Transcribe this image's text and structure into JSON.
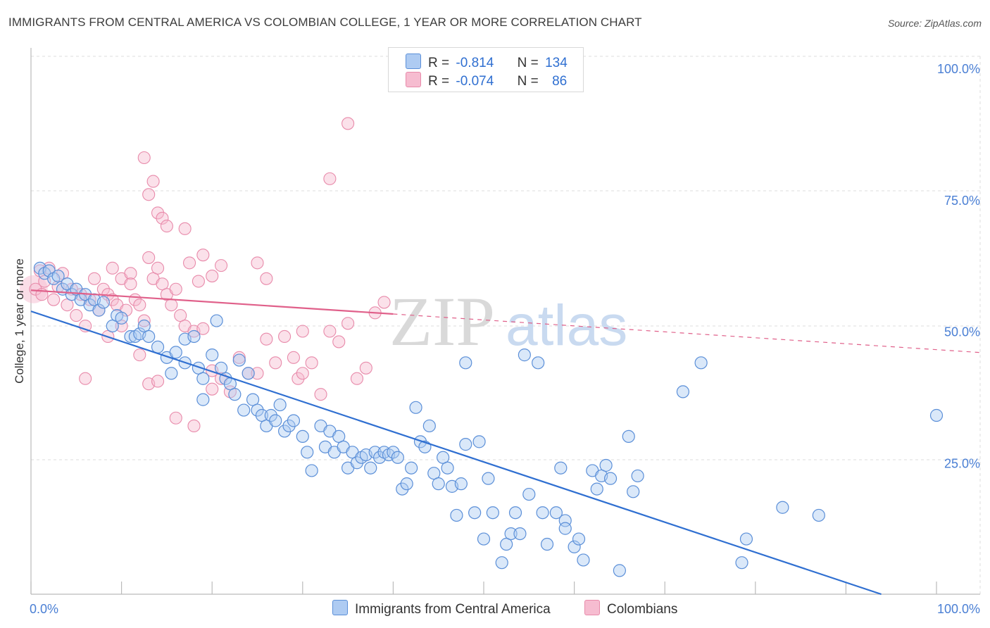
{
  "title": "IMMIGRANTS FROM CENTRAL AMERICA VS COLOMBIAN COLLEGE, 1 YEAR OR MORE CORRELATION CHART",
  "source": "Source: ZipAtlas.com",
  "watermark": {
    "zip": "ZIP",
    "atlas": "atlas"
  },
  "legend": {
    "rows": [
      {
        "r_label": "R =",
        "r_value": "-0.814",
        "n_label": "N =",
        "n_value": "134"
      },
      {
        "r_label": "R =",
        "r_value": "-0.074",
        "n_label": "N =",
        "n_value": "86"
      }
    ]
  },
  "bottom_legend": [
    "Immigrants from Central America",
    "Colombians"
  ],
  "colors": {
    "blue_fill": "#aecbf2",
    "blue_stroke": "#5b8fd8",
    "blue_line": "#2f6fd1",
    "pink_fill": "#f6bcd0",
    "pink_stroke": "#e88aaa",
    "pink_line": "#e0608a",
    "tick_label": "#4a7fd4",
    "grid": "#dddddd"
  },
  "chart_data": {
    "type": "scatter",
    "title": "IMMIGRANTS FROM CENTRAL AMERICA VS COLOMBIAN COLLEGE, 1 YEAR OR MORE CORRELATION CHART",
    "xlabel": "",
    "ylabel": "College, 1 year or more",
    "xlim": [
      0,
      100
    ],
    "ylim": [
      0,
      100
    ],
    "x_tick_labels": [
      "0.0%",
      "100.0%"
    ],
    "y_ticks": [
      25,
      50,
      75,
      100
    ],
    "y_tick_labels": [
      "25.0%",
      "50.0%",
      "75.0%",
      "100.0%"
    ],
    "grid": true,
    "legend_position": "top-center",
    "series": [
      {
        "name": "Immigrants from Central America",
        "r": -0.814,
        "n": 134,
        "trend": {
          "x0": 0,
          "y0": 53.8,
          "x1": 93.9,
          "y1": 0
        },
        "points": [
          [
            1,
            62
          ],
          [
            1.5,
            61
          ],
          [
            2,
            61.5
          ],
          [
            2.5,
            60
          ],
          [
            3,
            60.5
          ],
          [
            3.5,
            58
          ],
          [
            4,
            59
          ],
          [
            4.5,
            57
          ],
          [
            5,
            58
          ],
          [
            5.5,
            56
          ],
          [
            6,
            57
          ],
          [
            6.5,
            55
          ],
          [
            7,
            56
          ],
          [
            7.5,
            54
          ],
          [
            8,
            55.5
          ],
          [
            9,
            51
          ],
          [
            9.5,
            53
          ],
          [
            10,
            52.5
          ],
          [
            11,
            49
          ],
          [
            11.5,
            49
          ],
          [
            12,
            49.5
          ],
          [
            12.5,
            51
          ],
          [
            13,
            49
          ],
          [
            14,
            47
          ],
          [
            15,
            45
          ],
          [
            15.5,
            42
          ],
          [
            16,
            46
          ],
          [
            17,
            44
          ],
          [
            17,
            48.5
          ],
          [
            18,
            49
          ],
          [
            18.5,
            43
          ],
          [
            19,
            41
          ],
          [
            19,
            37
          ],
          [
            20,
            45.5
          ],
          [
            20.5,
            52
          ],
          [
            21,
            43
          ],
          [
            21.5,
            41
          ],
          [
            22,
            40
          ],
          [
            22.5,
            38
          ],
          [
            23,
            44.5
          ],
          [
            23.5,
            35
          ],
          [
            24,
            42
          ],
          [
            24.5,
            37
          ],
          [
            25,
            35
          ],
          [
            25.5,
            34
          ],
          [
            26,
            32
          ],
          [
            26.5,
            34
          ],
          [
            27,
            33
          ],
          [
            27.5,
            36
          ],
          [
            28,
            31
          ],
          [
            28.5,
            32
          ],
          [
            29,
            33
          ],
          [
            30,
            30
          ],
          [
            30.5,
            27
          ],
          [
            31,
            23.5
          ],
          [
            32,
            32
          ],
          [
            32.5,
            28
          ],
          [
            33,
            31
          ],
          [
            33.5,
            27
          ],
          [
            34,
            30
          ],
          [
            34.5,
            28
          ],
          [
            35,
            24
          ],
          [
            35.5,
            27
          ],
          [
            36,
            25
          ],
          [
            36.5,
            26
          ],
          [
            37,
            26.5
          ],
          [
            37.5,
            24
          ],
          [
            38,
            27
          ],
          [
            38.5,
            26
          ],
          [
            39,
            27
          ],
          [
            39.5,
            26.5
          ],
          [
            40,
            27
          ],
          [
            40.5,
            26
          ],
          [
            41,
            20
          ],
          [
            41.5,
            21
          ],
          [
            42,
            24
          ],
          [
            42.5,
            35.5
          ],
          [
            43,
            29
          ],
          [
            43.5,
            28
          ],
          [
            44,
            32
          ],
          [
            44.5,
            23
          ],
          [
            45,
            21
          ],
          [
            45.5,
            26
          ],
          [
            46,
            24
          ],
          [
            46.5,
            20.5
          ],
          [
            47,
            15
          ],
          [
            47.5,
            21
          ],
          [
            48,
            28.5
          ],
          [
            48,
            44
          ],
          [
            49,
            15.5
          ],
          [
            49.5,
            29
          ],
          [
            50,
            10.5
          ],
          [
            50.5,
            22
          ],
          [
            51,
            15.5
          ],
          [
            52,
            6
          ],
          [
            52.5,
            9.5
          ],
          [
            53,
            11.5
          ],
          [
            53.5,
            15.5
          ],
          [
            54,
            11.5
          ],
          [
            54.5,
            45.5
          ],
          [
            55,
            19
          ],
          [
            56,
            44
          ],
          [
            56.5,
            15.5
          ],
          [
            57,
            9.5
          ],
          [
            58,
            15.5
          ],
          [
            58.5,
            24
          ],
          [
            59,
            14
          ],
          [
            59,
            12.5
          ],
          [
            60,
            9
          ],
          [
            60.5,
            10.5
          ],
          [
            61,
            6.5
          ],
          [
            62,
            23.5
          ],
          [
            62.5,
            20
          ],
          [
            63,
            22.5
          ],
          [
            63.5,
            24.5
          ],
          [
            64,
            22
          ],
          [
            65,
            4.5
          ],
          [
            66,
            30
          ],
          [
            66.5,
            19.5
          ],
          [
            67,
            22.5
          ],
          [
            72,
            38.5
          ],
          [
            74,
            44
          ],
          [
            78.5,
            6
          ],
          [
            79,
            10.5
          ],
          [
            83,
            16.5
          ],
          [
            87,
            15
          ],
          [
            100,
            34
          ]
        ]
      },
      {
        "name": "Colombians",
        "r": -0.074,
        "n": 86,
        "trend": {
          "x0": 0,
          "y0": 57.8,
          "x1": 100,
          "y1": 46.5,
          "solid_until_x": 40
        },
        "points": [
          [
            0.5,
            58
          ],
          [
            1,
            61.5
          ],
          [
            1.2,
            57
          ],
          [
            1.5,
            59.5
          ],
          [
            2,
            62
          ],
          [
            2.5,
            56
          ],
          [
            3,
            58.5
          ],
          [
            3.5,
            61
          ],
          [
            4,
            55
          ],
          [
            4.5,
            58
          ],
          [
            5,
            53
          ],
          [
            5.5,
            57
          ],
          [
            6,
            51
          ],
          [
            6.5,
            56
          ],
          [
            7,
            60
          ],
          [
            7.5,
            54
          ],
          [
            8,
            58
          ],
          [
            8.5,
            57
          ],
          [
            9,
            56
          ],
          [
            9.5,
            55
          ],
          [
            10,
            60
          ],
          [
            10.5,
            54
          ],
          [
            11,
            61
          ],
          [
            11.5,
            56
          ],
          [
            12,
            55
          ],
          [
            12.5,
            52
          ],
          [
            13,
            64
          ],
          [
            13.5,
            60
          ],
          [
            14,
            62
          ],
          [
            14.5,
            59
          ],
          [
            15,
            57
          ],
          [
            15.5,
            55
          ],
          [
            16,
            58
          ],
          [
            16.5,
            53
          ],
          [
            17,
            51
          ],
          [
            17.5,
            63
          ],
          [
            18,
            50
          ],
          [
            18.5,
            59.5
          ],
          [
            19,
            50.5
          ],
          [
            20,
            42.5
          ],
          [
            21,
            41
          ],
          [
            22,
            38.5
          ],
          [
            23,
            45
          ],
          [
            24,
            42
          ],
          [
            25,
            42
          ],
          [
            26,
            48.5
          ],
          [
            27,
            44
          ],
          [
            28,
            49
          ],
          [
            29,
            45
          ],
          [
            29.5,
            41
          ],
          [
            30,
            42
          ],
          [
            31,
            44
          ],
          [
            32,
            38
          ],
          [
            33,
            50
          ],
          [
            34,
            48
          ],
          [
            35,
            51.5
          ],
          [
            36,
            41
          ],
          [
            37,
            43
          ],
          [
            38,
            53.5
          ],
          [
            39,
            55.5
          ],
          [
            12.5,
            83
          ],
          [
            13,
            76
          ],
          [
            14,
            72.5
          ],
          [
            14.5,
            71.5
          ],
          [
            15,
            70
          ],
          [
            13.5,
            78.5
          ],
          [
            17,
            69.5
          ],
          [
            19,
            64.5
          ],
          [
            20,
            60.5
          ],
          [
            21,
            62.5
          ],
          [
            25,
            63
          ],
          [
            26,
            60
          ],
          [
            30,
            50
          ],
          [
            33,
            79
          ],
          [
            35,
            89.5
          ],
          [
            6,
            41
          ],
          [
            8.5,
            49
          ],
          [
            10,
            51
          ],
          [
            12,
            45.5
          ],
          [
            13,
            40
          ],
          [
            14,
            40.5
          ],
          [
            16,
            33.5
          ],
          [
            18,
            32
          ],
          [
            20,
            39
          ],
          [
            9,
            62
          ],
          [
            11,
            59
          ]
        ]
      }
    ]
  }
}
